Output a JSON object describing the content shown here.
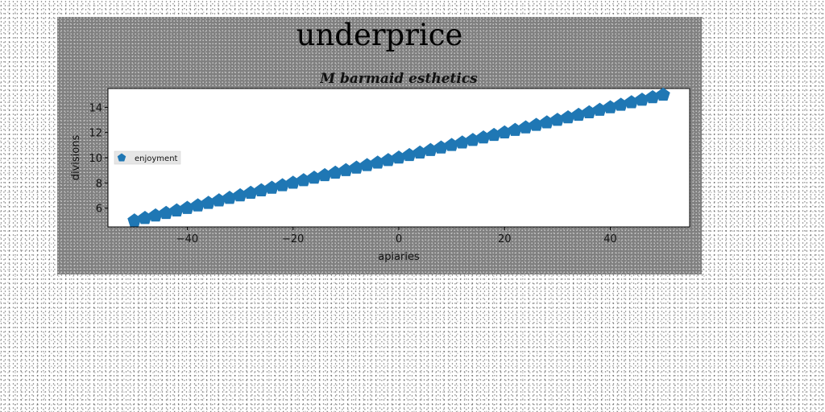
{
  "chart_data": {
    "type": "scatter",
    "title": "underprice",
    "subtitle": "M barmaid esthetics",
    "xlabel": "apiaries",
    "ylabel": "divisions",
    "xlim": [
      -55,
      55
    ],
    "ylim": [
      4.5,
      15.5
    ],
    "x_ticks": [
      -40,
      -20,
      0,
      20,
      40
    ],
    "x_tick_labels": [
      "−40",
      "−20",
      "0",
      "20",
      "40"
    ],
    "y_ticks": [
      6,
      8,
      10,
      12,
      14
    ],
    "y_tick_labels": [
      "6",
      "8",
      "10",
      "12",
      "14"
    ],
    "grid": false,
    "legend_position": "center-left",
    "series": [
      {
        "name": "enjoyment",
        "marker": "pentagon",
        "color": "#1f77b4",
        "x_start": -50,
        "x_end": 50,
        "count": 51,
        "slope": 0.1,
        "intercept": 10
      }
    ]
  }
}
